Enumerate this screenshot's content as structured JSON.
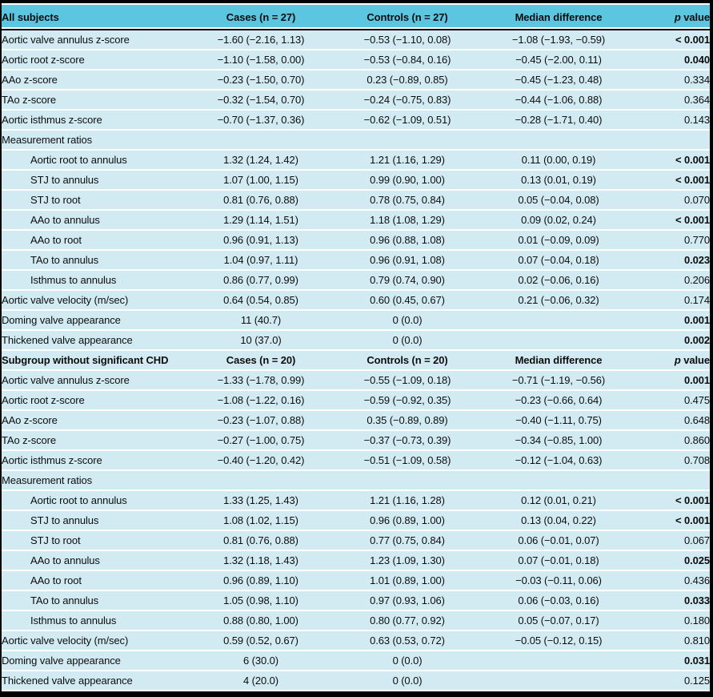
{
  "colors": {
    "header_bg": "#5cc6e1",
    "row_bg": "#d2ebf3",
    "outer_border": "#000000",
    "row_separator": "#ffffff",
    "text": "#0d0d0d"
  },
  "table": {
    "p_header": {
      "italic": "p",
      "rest": " value"
    },
    "sections": [
      {
        "title": "All subjects",
        "cases_header": "Cases (n = 27)",
        "controls_header": "Controls (n = 27)",
        "median_header": "Median difference",
        "rows": [
          {
            "label": "Aortic valve annulus z-score",
            "cases": "−1.60 (−2.16, 1.13)",
            "controls": "−0.53 (−1.10, 0.08)",
            "median": "−1.08 (−1.93, −0.59)",
            "p": "< 0.001",
            "p_bold": true
          },
          {
            "label": "Aortic root z-score",
            "cases": "−1.10 (−1.58, 0.00)",
            "controls": "−0.53 (−0.84, 0.16)",
            "median": "−0.45 (−2.00, 0.11)",
            "p": "0.040",
            "p_bold": true
          },
          {
            "label": "AAo z-score",
            "cases": "−0.23 (−1.50, 0.70)",
            "controls": "0.23 (−0.89, 0.85)",
            "median": "−0.45 (−1.23, 0.48)",
            "p": "0.334",
            "p_bold": false
          },
          {
            "label": "TAo z-score",
            "cases": "−0.32 (−1.54, 0.70)",
            "controls": "−0.24 (−0.75, 0.83)",
            "median": "−0.44 (−1.06, 0.88)",
            "p": "0.364",
            "p_bold": false
          },
          {
            "label": "Aortic isthmus z-score",
            "cases": "−0.70 (−1.37, 0.36)",
            "controls": "−0.62 (−1.09, 0.51)",
            "median": "−0.28 (−1.71, 0.40)",
            "p": "0.143",
            "p_bold": false
          },
          {
            "label": "Measurement ratios",
            "subheader": true
          },
          {
            "label": "Aortic root to annulus",
            "indent": true,
            "cases": "1.32 (1.24, 1.42)",
            "controls": "1.21 (1.16, 1.29)",
            "median": "0.11 (0.00, 0.19)",
            "p": "< 0.001",
            "p_bold": true
          },
          {
            "label": "STJ to annulus",
            "indent": true,
            "cases": "1.07 (1.00, 1.15)",
            "controls": "0.99 (0.90, 1.00)",
            "median": "0.13 (0.01, 0.19)",
            "p": "< 0.001",
            "p_bold": true
          },
          {
            "label": "STJ to root",
            "indent": true,
            "cases": "0.81 (0.76, 0.88)",
            "controls": "0.78 (0.75, 0.84)",
            "median": "0.05 (−0.04, 0.08)",
            "p": "0.070",
            "p_bold": false
          },
          {
            "label": "AAo to annulus",
            "indent": true,
            "cases": "1.29 (1.14, 1.51)",
            "controls": "1.18 (1.08, 1.29)",
            "median": "0.09 (0.02, 0.24)",
            "p": "< 0.001",
            "p_bold": true
          },
          {
            "label": "AAo to root",
            "indent": true,
            "cases": "0.96 (0.91, 1.13)",
            "controls": "0.96 (0.88, 1.08)",
            "median": "0.01 (−0.09, 0.09)",
            "p": "0.770",
            "p_bold": false
          },
          {
            "label": "TAo to annulus",
            "indent": true,
            "cases": "1.04 (0.97, 1.11)",
            "controls": "0.96 (0.91, 1.08)",
            "median": "0.07 (−0.04, 0.18)",
            "p": "0.023",
            "p_bold": true
          },
          {
            "label": "Isthmus to annulus",
            "indent": true,
            "cases": "0.86 (0.77, 0.99)",
            "controls": "0.79 (0.74, 0.90)",
            "median": "0.02 (−0.06, 0.16)",
            "p": "0.206",
            "p_bold": false
          },
          {
            "label": "Aortic valve velocity (m/sec)",
            "cases": "0.64 (0.54, 0.85)",
            "controls": "0.60 (0.45, 0.67)",
            "median": "0.21 (−0.06, 0.32)",
            "p": "0.174",
            "p_bold": false
          },
          {
            "label": "Doming valve appearance",
            "cases": "11 (40.7)",
            "controls": "0 (0.0)",
            "median": "",
            "p": "0.001",
            "p_bold": true
          },
          {
            "label": "Thickened valve appearance",
            "cases": "10 (37.0)",
            "controls": "0 (0.0)",
            "median": "",
            "p": "0.002",
            "p_bold": true
          }
        ]
      },
      {
        "title": "Subgroup without significant CHD",
        "cases_header": "Cases (n = 20)",
        "controls_header": "Controls (n = 20)",
        "median_header": "Median difference",
        "rows": [
          {
            "label": "Aortic valve annulus z-score",
            "cases": "−1.33 (−1.78, 0.99)",
            "controls": "−0.55 (−1.09, 0.18)",
            "median": "−0.71 (−1.19, −0.56)",
            "p": "0.001",
            "p_bold": true
          },
          {
            "label": "Aortic root z-score",
            "cases": "−1.08 (−1.22, 0.16)",
            "controls": "−0.59 (−0.92, 0.35)",
            "median": "−0.23 (−0.66, 0.64)",
            "p": "0.475",
            "p_bold": false
          },
          {
            "label": "AAo z-score",
            "cases": "−0.23 (−1.07, 0.88)",
            "controls": "0.35 (−0.89, 0.89)",
            "median": "−0.40 (−1.11, 0.75)",
            "p": "0.648",
            "p_bold": false
          },
          {
            "label": "TAo z-score",
            "cases": "−0.27 (−1.00, 0.75)",
            "controls": "−0.37 (−0.73, 0.39)",
            "median": "−0.34 (−0.85, 1.00)",
            "p": "0.860",
            "p_bold": false
          },
          {
            "label": "Aortic isthmus z-score",
            "cases": "−0.40 (−1.20, 0.42)",
            "controls": "−0.51 (−1.09, 0.58)",
            "median": "−0.12 (−1.04, 0.63)",
            "p": "0.708",
            "p_bold": false
          },
          {
            "label": "Measurement ratios",
            "subheader": true
          },
          {
            "label": "Aortic root to annulus",
            "indent": true,
            "cases": "1.33 (1.25, 1.43)",
            "controls": "1.21 (1.16, 1.28)",
            "median": "0.12 (0.01, 0.21)",
            "p": "< 0.001",
            "p_bold": true
          },
          {
            "label": "STJ to annulus",
            "indent": true,
            "cases": "1.08 (1.02, 1.15)",
            "controls": "0.96 (0.89, 1.00)",
            "median": "0.13 (0.04, 0.22)",
            "p": "< 0.001",
            "p_bold": true
          },
          {
            "label": "STJ to root",
            "indent": true,
            "cases": "0.81 (0.76, 0.88)",
            "controls": "0.77 (0.75, 0.84)",
            "median": "0.06 (−0.01, 0.07)",
            "p": "0.067",
            "p_bold": false
          },
          {
            "label": "AAo to annulus",
            "indent": true,
            "cases": "1.32 (1.18, 1.43)",
            "controls": "1.23 (1.09, 1.30)",
            "median": "0.07 (−0.01, 0.18)",
            "p": "0.025",
            "p_bold": true
          },
          {
            "label": "AAo to root",
            "indent": true,
            "cases": "0.96 (0.89, 1.10)",
            "controls": "1.01 (0.89, 1.00)",
            "median": "−0.03 (−0.11, 0.06)",
            "p": "0.436",
            "p_bold": false
          },
          {
            "label": "TAo to annulus",
            "indent": true,
            "cases": "1.05 (0.98, 1.10)",
            "controls": "0.97 (0.93, 1.06)",
            "median": "0.06 (−0.03, 0.16)",
            "p": "0.033",
            "p_bold": true
          },
          {
            "label": "Isthmus to annulus",
            "indent": true,
            "cases": "0.88 (0.80, 1.00)",
            "controls": "0.80 (0.77, 0.92)",
            "median": "0.05 (−0.07, 0.17)",
            "p": "0.180",
            "p_bold": false
          },
          {
            "label": "Aortic valve velocity (m/sec)",
            "cases": "0.59 (0.52, 0.67)",
            "controls": "0.63 (0.53, 0.72)",
            "median": "−0.05 (−0.12, 0.15)",
            "p": "0.810",
            "p_bold": false
          },
          {
            "label": "Doming valve appearance",
            "cases": "6 (30.0)",
            "controls": "0 (0.0)",
            "median": "",
            "p": "0.031",
            "p_bold": true
          },
          {
            "label": "Thickened valve appearance",
            "cases": "4 (20.0)",
            "controls": "0 (0.0)",
            "median": "",
            "p": "0.125",
            "p_bold": false
          }
        ]
      }
    ]
  }
}
